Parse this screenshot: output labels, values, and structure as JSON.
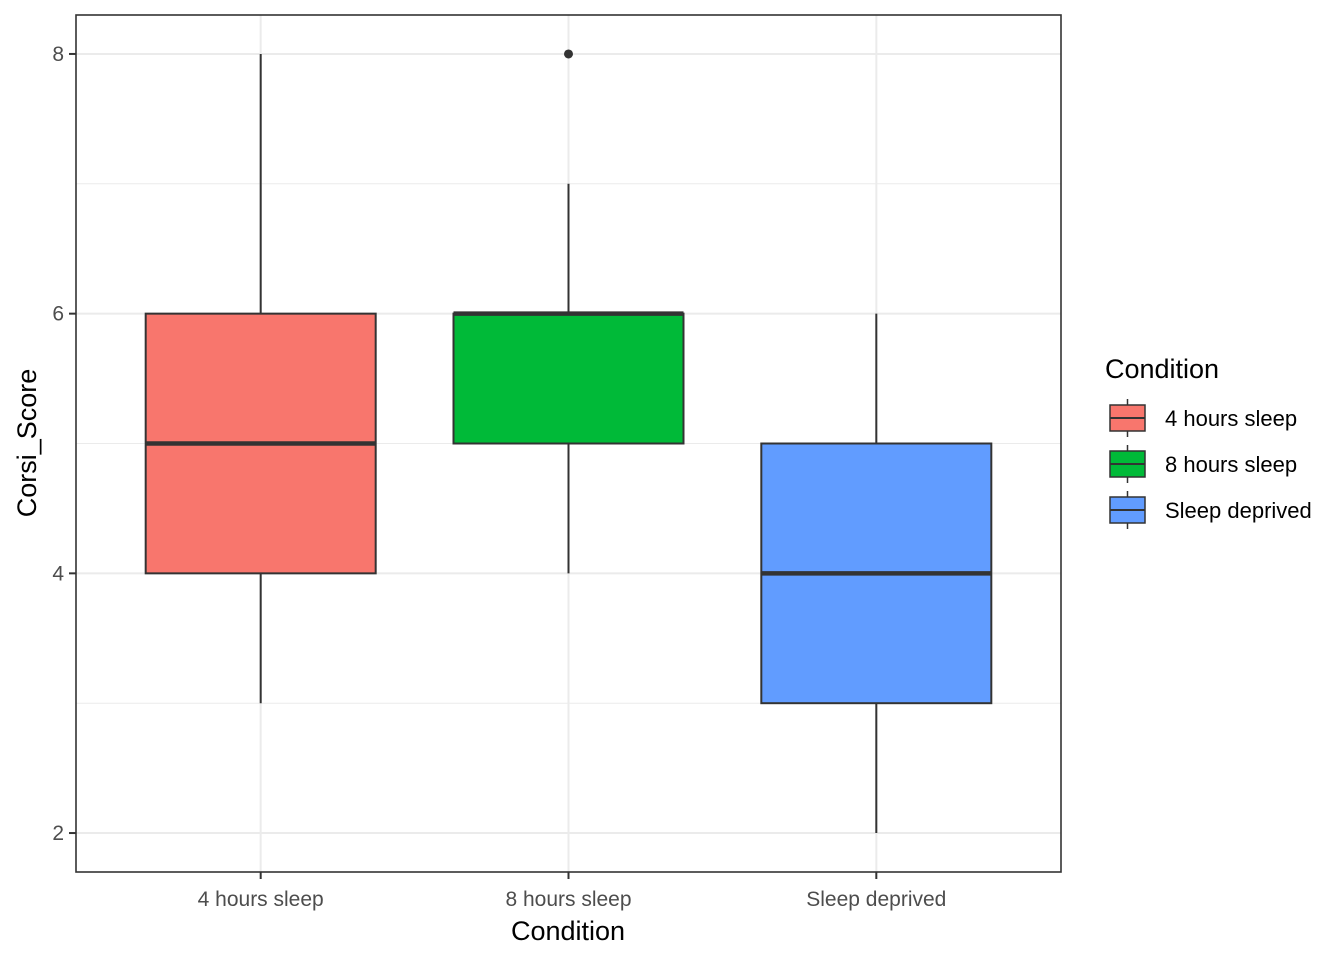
{
  "chart_data": {
    "type": "boxplot",
    "title": "",
    "xlabel": "Condition",
    "ylabel": "Corsi_Score",
    "ylim": [
      1.7,
      8.3
    ],
    "yticks": [
      2,
      4,
      6,
      8
    ],
    "grid": true,
    "legend": {
      "title": "Condition",
      "placement": "right"
    },
    "categories": [
      "4 hours sleep",
      "8 hours sleep",
      "Sleep deprived"
    ],
    "series": [
      {
        "name": "4 hours sleep",
        "color": "#F8766D",
        "whisker_low": 3,
        "q1": 4,
        "median": 5,
        "q3": 6,
        "whisker_high": 8,
        "outliers": []
      },
      {
        "name": "8 hours sleep",
        "color": "#00BA38",
        "whisker_low": 4,
        "q1": 5,
        "median": 6,
        "q3": 6,
        "whisker_high": 7,
        "outliers": [
          8
        ]
      },
      {
        "name": "Sleep deprived",
        "color": "#619CFF",
        "whisker_low": 2,
        "q1": 3,
        "median": 4,
        "q3": 5,
        "whisker_high": 6,
        "outliers": []
      }
    ]
  }
}
